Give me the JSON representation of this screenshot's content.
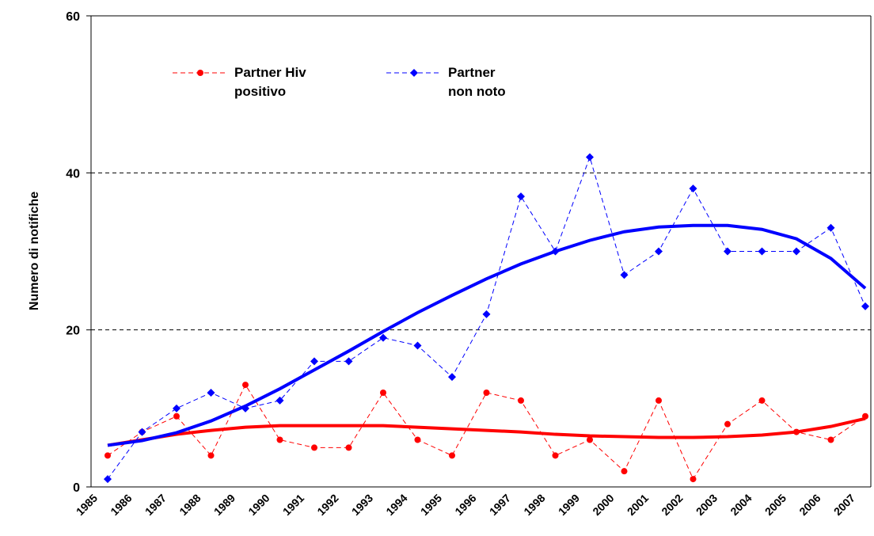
{
  "chart_data": {
    "type": "line",
    "y_label": "Numero di notifiche",
    "categories": [
      "1985",
      "1986",
      "1987",
      "1988",
      "1989",
      "1990",
      "1991",
      "1992",
      "1993",
      "1994",
      "1995",
      "1996",
      "1997",
      "1998",
      "1999",
      "2000",
      "2001",
      "2002",
      "2003",
      "2004",
      "2005",
      "2006",
      "2007"
    ],
    "series": [
      {
        "name": "Partner Hiv positivo",
        "color": "#ff0000",
        "marker": "circle",
        "values": [
          4,
          7,
          9,
          4,
          13,
          6,
          5,
          5,
          12,
          6,
          4,
          12,
          11,
          4,
          6,
          2,
          11,
          1,
          8,
          11,
          7,
          6,
          9
        ],
        "trend": [
          5.3,
          6.0,
          6.7,
          7.2,
          7.6,
          7.8,
          7.8,
          7.8,
          7.8,
          7.6,
          7.4,
          7.2,
          7.0,
          6.7,
          6.5,
          6.4,
          6.3,
          6.3,
          6.4,
          6.6,
          7.0,
          7.7,
          8.7
        ]
      },
      {
        "name": "Partner non noto",
        "color": "#0000ff",
        "marker": "diamond",
        "values": [
          1,
          7,
          10,
          12,
          10,
          11,
          16,
          16,
          19,
          18,
          14,
          22,
          37,
          30,
          42,
          27,
          30,
          38,
          30,
          30,
          30,
          33,
          23
        ],
        "trend": [
          5.3,
          5.9,
          6.9,
          8.4,
          10.3,
          12.5,
          14.9,
          17.3,
          19.8,
          22.2,
          24.4,
          26.5,
          28.4,
          30.0,
          31.4,
          32.5,
          33.1,
          33.3,
          33.3,
          32.8,
          31.6,
          29.1,
          25.3
        ]
      }
    ],
    "ylim": [
      0,
      60
    ],
    "yticks": [
      0,
      20,
      40,
      60
    ],
    "grid": true
  }
}
